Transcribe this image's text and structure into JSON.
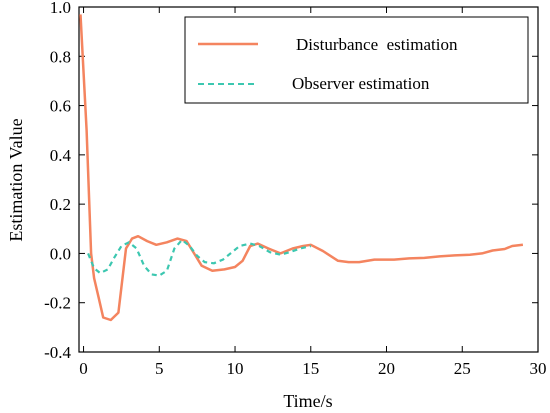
{
  "chart_data": {
    "type": "line",
    "xlabel": "Time/s",
    "ylabel": "Estimation Value",
    "xlim": [
      -0.3,
      30
    ],
    "ylim": [
      -0.4,
      1.0
    ],
    "xticks": [
      "0",
      "5",
      "10",
      "15",
      "20",
      "25",
      "30"
    ],
    "yticks": [
      "-0.4",
      "-0.2",
      "0.0",
      "0.2",
      "0.4",
      "0.6",
      "0.8",
      "1.0"
    ],
    "grid": false,
    "legend_position": "top-right",
    "series": [
      {
        "name": "Disturbance  estimation",
        "color": "#f4845f",
        "style": "solid",
        "points": [
          [
            -0.2,
            0.97
          ],
          [
            0.2,
            0.5
          ],
          [
            0.5,
            0.0
          ],
          [
            0.7,
            -0.1
          ],
          [
            1.0,
            -0.18
          ],
          [
            1.3,
            -0.26
          ],
          [
            1.8,
            -0.27
          ],
          [
            2.3,
            -0.24
          ],
          [
            2.8,
            0.02
          ],
          [
            3.2,
            0.06
          ],
          [
            3.6,
            0.07
          ],
          [
            4.2,
            0.05
          ],
          [
            4.8,
            0.035
          ],
          [
            5.5,
            0.045
          ],
          [
            6.2,
            0.06
          ],
          [
            6.8,
            0.05
          ],
          [
            7.3,
            0.0
          ],
          [
            7.8,
            -0.05
          ],
          [
            8.5,
            -0.07
          ],
          [
            9.3,
            -0.065
          ],
          [
            10.0,
            -0.055
          ],
          [
            10.5,
            -0.03
          ],
          [
            11.0,
            0.03
          ],
          [
            11.5,
            0.04
          ],
          [
            12.2,
            0.02
          ],
          [
            13.0,
            0.0
          ],
          [
            13.8,
            0.02
          ],
          [
            14.5,
            0.03
          ],
          [
            15.0,
            0.035
          ],
          [
            15.8,
            0.01
          ],
          [
            16.8,
            -0.03
          ],
          [
            17.5,
            -0.035
          ],
          [
            18.2,
            -0.035
          ],
          [
            19.2,
            -0.025
          ],
          [
            20.5,
            -0.025
          ],
          [
            21.5,
            -0.02
          ],
          [
            22.5,
            -0.018
          ],
          [
            23.5,
            -0.012
          ],
          [
            24.5,
            -0.008
          ],
          [
            25.5,
            -0.005
          ],
          [
            26.3,
            0.0
          ],
          [
            27.0,
            0.012
          ],
          [
            27.8,
            0.018
          ],
          [
            28.3,
            0.03
          ],
          [
            29.0,
            0.035
          ]
        ]
      },
      {
        "name": "Observer estimation",
        "color": "#3cc7b0",
        "style": "dashed",
        "points": [
          [
            0.3,
            0.0
          ],
          [
            0.7,
            -0.06
          ],
          [
            1.1,
            -0.08
          ],
          [
            1.6,
            -0.065
          ],
          [
            2.0,
            -0.02
          ],
          [
            2.5,
            0.03
          ],
          [
            3.0,
            0.045
          ],
          [
            3.5,
            0.02
          ],
          [
            4.0,
            -0.05
          ],
          [
            4.5,
            -0.085
          ],
          [
            5.0,
            -0.09
          ],
          [
            5.5,
            -0.07
          ],
          [
            6.0,
            0.02
          ],
          [
            6.5,
            0.055
          ],
          [
            7.0,
            0.03
          ],
          [
            7.5,
            -0.01
          ],
          [
            8.0,
            -0.035
          ],
          [
            8.6,
            -0.04
          ],
          [
            9.2,
            -0.025
          ],
          [
            9.8,
            0.005
          ],
          [
            10.3,
            0.03
          ],
          [
            11.0,
            0.04
          ],
          [
            11.6,
            0.03
          ],
          [
            12.3,
            0.005
          ],
          [
            13.0,
            -0.005
          ],
          [
            13.6,
            0.005
          ],
          [
            14.3,
            0.02
          ],
          [
            15.0,
            0.03
          ]
        ]
      }
    ]
  }
}
